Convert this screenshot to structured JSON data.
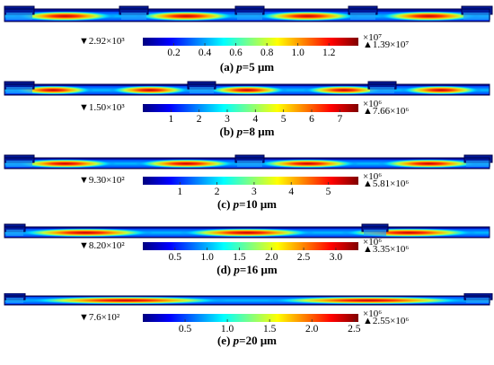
{
  "panels": [
    {
      "min_label": "▼2.92×10³",
      "max_label": "▲1.39×10⁷",
      "exponent": "×10⁷",
      "ticks": [
        "0.2",
        "0.4",
        "0.6",
        "0.8",
        "1.0",
        "1.2"
      ],
      "tick_values": [
        0.2,
        0.4,
        0.6,
        0.8,
        1.0,
        1.2
      ],
      "bar_range": [
        0,
        1.39
      ],
      "caption_prefix": "(a) ",
      "caption_var": "p",
      "caption_suffix": "=5 μm",
      "period_um": 5,
      "cells": 4,
      "insets_per_period": 1
    },
    {
      "min_label": "▼1.50×10³",
      "max_label": "▲7.66×10⁶",
      "exponent": "×10⁶",
      "ticks": [
        "1",
        "2",
        "3",
        "4",
        "5",
        "6",
        "7"
      ],
      "tick_values": [
        1,
        2,
        3,
        4,
        5,
        6,
        7
      ],
      "bar_range": [
        0,
        7.66
      ],
      "caption_prefix": "(b) ",
      "caption_var": "p",
      "caption_suffix": "=8 μm",
      "period_um": 8
    },
    {
      "min_label": "▼9.30×10²",
      "max_label": "▲5.81×10⁶",
      "exponent": "×10⁶",
      "ticks": [
        "1",
        "2",
        "3",
        "4",
        "5"
      ],
      "tick_values": [
        1,
        2,
        3,
        4,
        5
      ],
      "bar_range": [
        0,
        5.81
      ],
      "caption_prefix": "(c) ",
      "caption_var": "p",
      "caption_suffix": "=10 μm",
      "period_um": 10
    },
    {
      "min_label": "▼8.20×10²",
      "max_label": "▲3.35×10⁶",
      "exponent": "×10⁶",
      "ticks": [
        "0.5",
        "1.0",
        "1.5",
        "2.0",
        "2.5",
        "3.0"
      ],
      "tick_values": [
        0.5,
        1.0,
        1.5,
        2.0,
        2.5,
        3.0
      ],
      "bar_range": [
        0,
        3.35
      ],
      "caption_prefix": "(d) ",
      "caption_var": "p",
      "caption_suffix": "=16 μm",
      "period_um": 16
    },
    {
      "min_label": "▼7.6×10²",
      "max_label": "▲2.55×10⁶",
      "exponent": "×10⁶",
      "ticks": [
        "0.5",
        "1.0",
        "1.5",
        "2.0",
        "2.5"
      ],
      "tick_values": [
        0.5,
        1.0,
        1.5,
        2.0,
        2.5
      ],
      "bar_range": [
        0,
        2.55
      ],
      "caption_prefix": "(e) ",
      "caption_var": "p",
      "caption_suffix": "=20 μm",
      "period_um": 20
    }
  ],
  "colormap": [
    "#00007f",
    "#0000ff",
    "#0080ff",
    "#00ffff",
    "#80ff80",
    "#ffff00",
    "#ff8000",
    "#ff0000",
    "#800000"
  ]
}
